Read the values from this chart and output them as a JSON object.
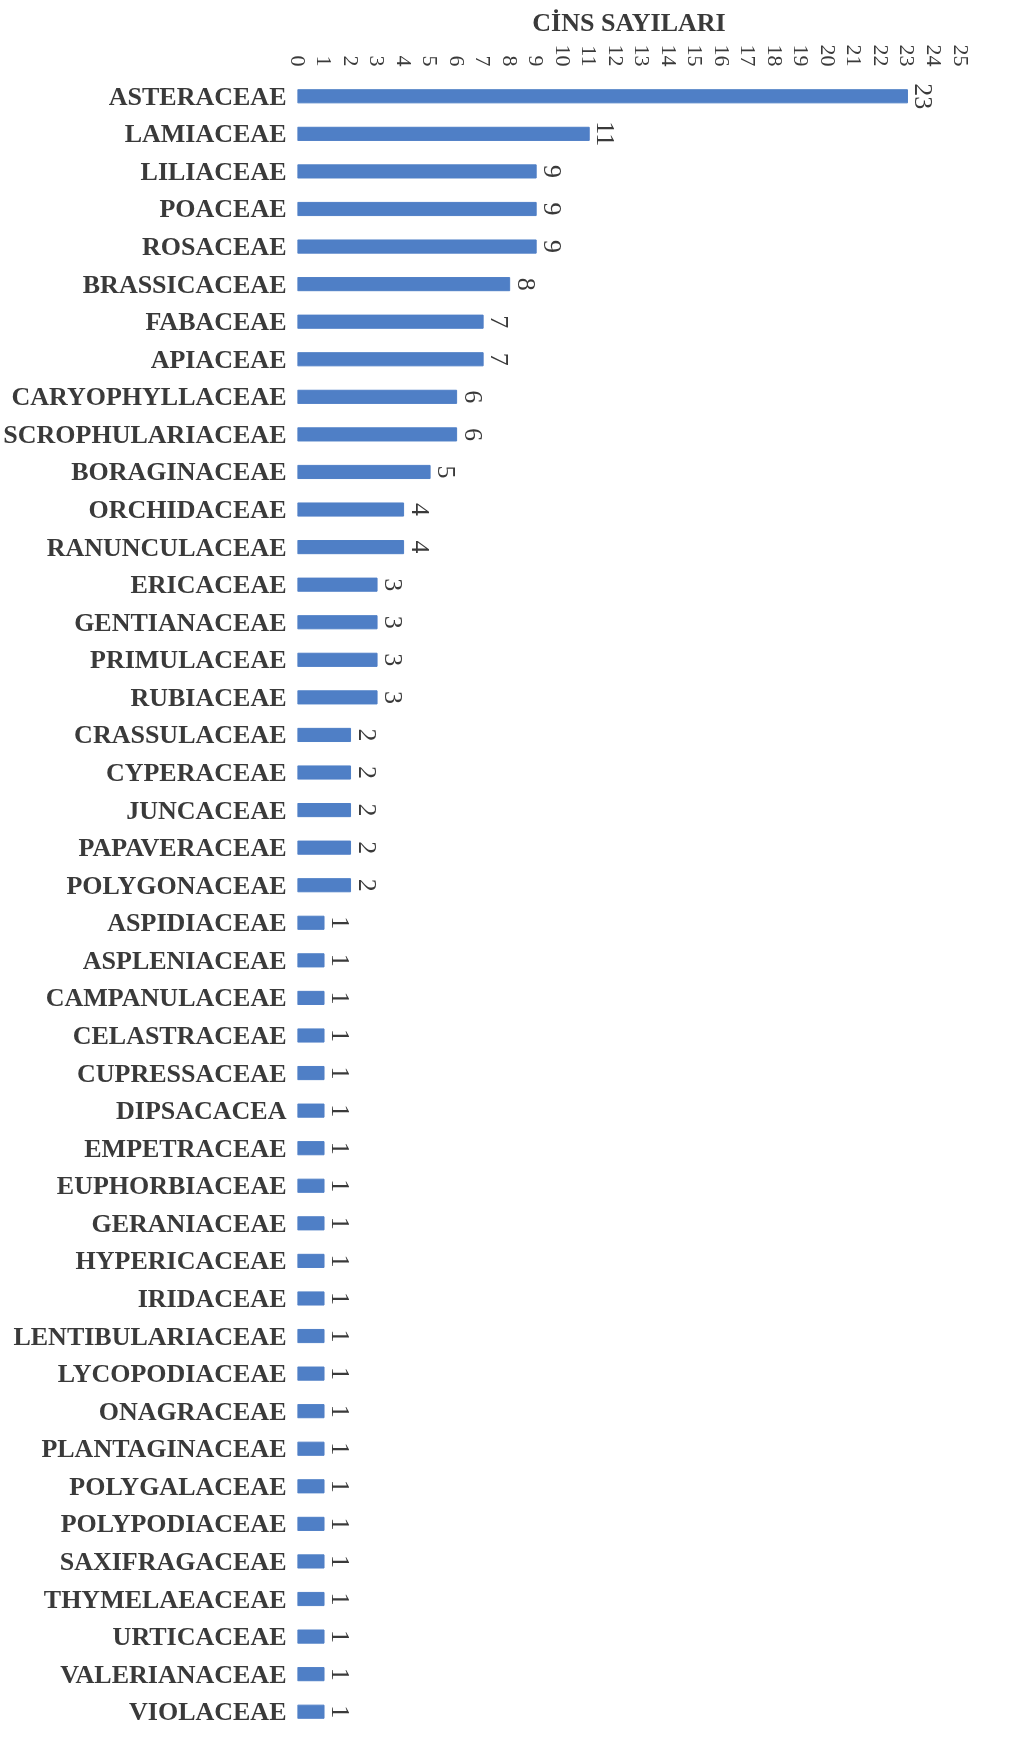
{
  "chart_data": {
    "type": "bar",
    "orientation": "horizontal",
    "title": "CİNS SAYILARI",
    "categories": [
      "ASTERACEAE",
      "LAMIACEAE",
      "LILIACEAE",
      "POACEAE",
      "ROSACEAE",
      "BRASSICACEAE",
      "FABACEAE",
      "APIACEAE",
      "CARYOPHYLLACEAE",
      "SCROPHULARIACEAE",
      "BORAGINACEAE",
      "ORCHIDACEAE",
      "RANUNCULACEAE",
      "ERICACEAE",
      "GENTIANACEAE",
      "PRIMULACEAE",
      "RUBIACEAE",
      "CRASSULACEAE",
      "CYPERACEAE",
      "JUNCACEAE",
      "PAPAVERACEAE",
      "POLYGONACEAE",
      "ASPIDIACEAE",
      "ASPLENIACEAE",
      "CAMPANULACEAE",
      "CELASTRACEAE",
      "CUPRESSACEAE",
      "DIPSACACEA",
      "EMPETRACEAE",
      "EUPHORBIACEAE",
      "GERANIACEAE",
      "HYPERICACEAE",
      "IRIDACEAE",
      "LENTIBULARIACEAE",
      "LYCOPODIACEAE",
      "ONAGRACEAE",
      "PLANTAGINACEAE",
      "POLYGALACEAE",
      "POLYPODIACEAE",
      "SAXIFRAGACEAE",
      "THYMELAEACEAE",
      "URTICACEAE",
      "VALERIANACEAE",
      "VIOLACEAE"
    ],
    "values": [
      23,
      11,
      9,
      9,
      9,
      8,
      7,
      7,
      6,
      6,
      5,
      4,
      4,
      3,
      3,
      3,
      3,
      2,
      2,
      2,
      2,
      2,
      1,
      1,
      1,
      1,
      1,
      1,
      1,
      1,
      1,
      1,
      1,
      1,
      1,
      1,
      1,
      1,
      1,
      1,
      1,
      1,
      1,
      1
    ],
    "color": "#4f7fc6",
    "xlim": [
      0,
      25
    ],
    "xticks": [
      0,
      1,
      2,
      3,
      4,
      5,
      6,
      7,
      8,
      9,
      10,
      11,
      12,
      13,
      14,
      15,
      16,
      17,
      18,
      19,
      20,
      21,
      22,
      23,
      24,
      25
    ],
    "grid": false,
    "data_labels": true
  }
}
